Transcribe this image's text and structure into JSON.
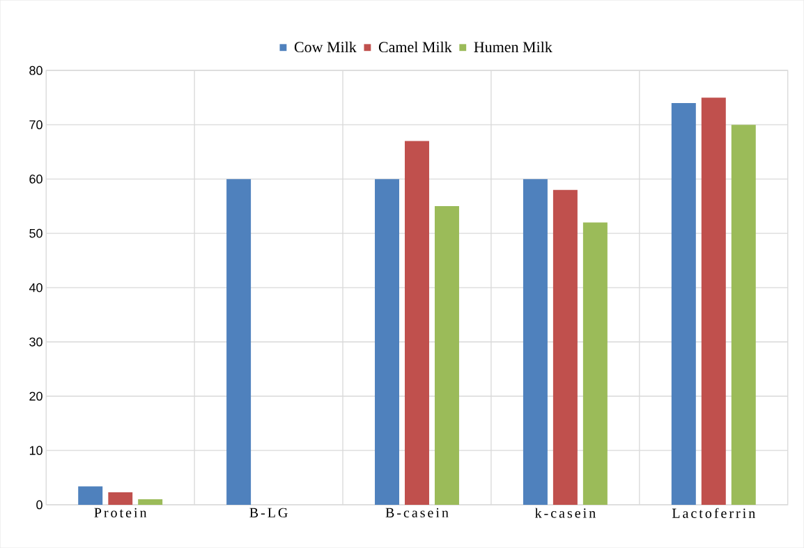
{
  "chart_data": {
    "type": "bar",
    "categories": [
      "Protein",
      "B-LG",
      "B-casein",
      "k-casein",
      "Lactoferrin"
    ],
    "series": [
      {
        "name": "Cow Milk",
        "color": "#4f81bd",
        "values": [
          3.4,
          60,
          60,
          60,
          74
        ]
      },
      {
        "name": "Camel Milk",
        "color": "#c0504d",
        "values": [
          2.3,
          null,
          67,
          58,
          75
        ]
      },
      {
        "name": "Humen Milk",
        "color": "#9bbb59",
        "values": [
          1,
          null,
          55,
          52,
          70
        ]
      }
    ],
    "ylim": [
      0,
      80
    ],
    "yticks": [
      0,
      10,
      20,
      30,
      40,
      50,
      60,
      70,
      80
    ],
    "grid": true,
    "legend": "top"
  }
}
